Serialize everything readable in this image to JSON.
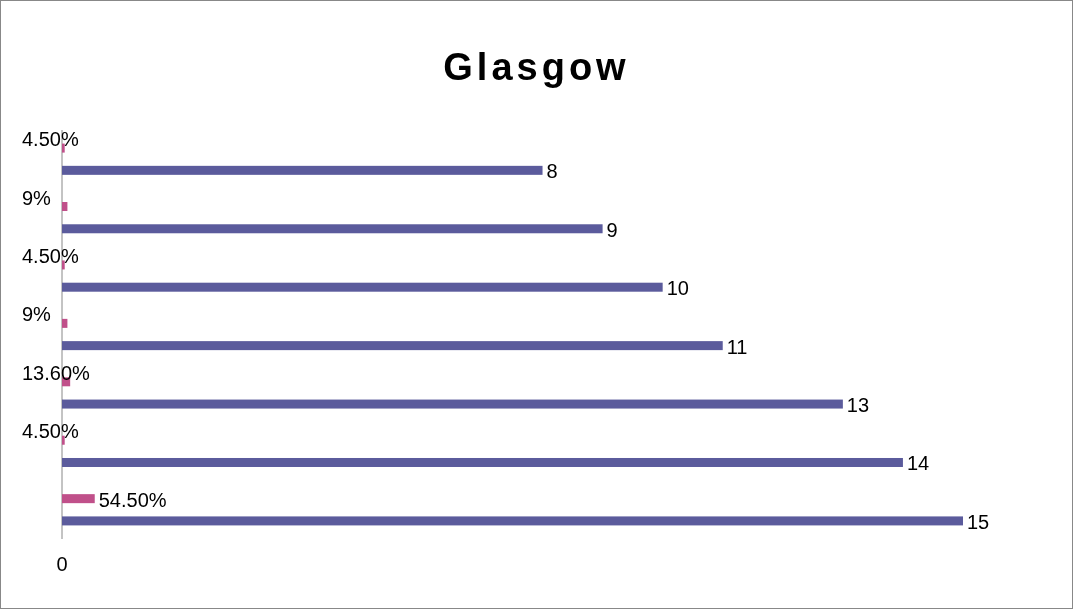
{
  "chart_data": {
    "type": "bar",
    "orientation": "horizontal",
    "title": "Glasgow",
    "categories": [
      null,
      null,
      null,
      null,
      null,
      null,
      null
    ],
    "series": [
      {
        "color": "#c0508a",
        "values": [
          0.045,
          0.09,
          0.045,
          0.09,
          0.136,
          0.045,
          0.545
        ],
        "value_labels": [
          "4.50%",
          "9%",
          "4.50%",
          "9%",
          "13.60%",
          "4.50%",
          "54.50%"
        ]
      },
      {
        "color": "#5b5b9c",
        "values": [
          8,
          9,
          10,
          11,
          13,
          14,
          15
        ],
        "value_labels": [
          "8",
          "9",
          "10",
          "11",
          "13",
          "14",
          "15"
        ]
      }
    ],
    "annotations": [
      "0"
    ]
  }
}
